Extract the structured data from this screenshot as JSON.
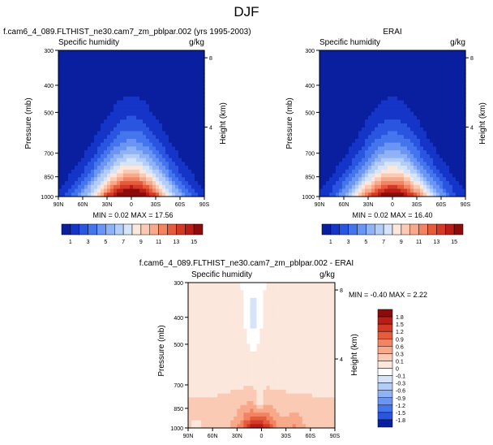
{
  "figure": {
    "title": "DJF"
  },
  "panels": [
    {
      "id": "model",
      "title": "f.cam6_4_089.FLTHIST_ne30.cam7_zm_pblpar.002 (yrs 1995-2003)",
      "left_label": "Specific humidity",
      "right_label": "g/kg",
      "stats": "MIN =  0.02  MAX =  17.56",
      "ylabel": "Pressure (mb)",
      "y2label": "Height (km)"
    },
    {
      "id": "obs",
      "title": "ERAI",
      "left_label": "Specific humidity",
      "right_label": "g/kg",
      "stats": "MIN =  0.02  MAX =  16.40",
      "ylabel": "Pressure (mb)",
      "y2label": "Height (km)"
    },
    {
      "id": "diff",
      "title": "f.cam6_4_089.FLTHIST_ne30.cam7_zm_pblpar.002 - ERAI",
      "left_label": "Specific humidity",
      "right_label": "g/kg",
      "stats": "MIN = -0.40  MAX =   2.22",
      "ylabel": "Pressure (mb)",
      "y2label": "Height (km)"
    }
  ],
  "chart_data": [
    {
      "type": "heatmap",
      "panel": "model",
      "x_ticks": [
        "90N",
        "60N",
        "30N",
        "0",
        "30S",
        "60S",
        "90S"
      ],
      "y_ticks": [
        "300",
        "400",
        "500",
        "700",
        "850",
        "1000"
      ],
      "y_tick_values": [
        300,
        400,
        500,
        700,
        850,
        1000
      ],
      "y2_ticks": [
        "8",
        "4"
      ],
      "y2_tick_values": [
        8,
        4
      ],
      "xlim": [
        90,
        -90
      ],
      "ylim": [
        1000,
        300
      ],
      "y_scale": "log",
      "fields": {
        "peak_lat": 0,
        "peak_value": 17.56,
        "min_value": 0.02
      },
      "colorbar": {
        "labels": [
          "1",
          "3",
          "5",
          "7",
          "9",
          "11",
          "13",
          "15"
        ],
        "colors": [
          "#0a1fa0",
          "#1535c8",
          "#2a55e0",
          "#4575ec",
          "#6a95f2",
          "#8fb3f6",
          "#b3cdf8",
          "#d6e4fa",
          "#fbe7dc",
          "#fbcab4",
          "#f7a98a",
          "#f28463",
          "#e65b3c",
          "#d33a26",
          "#b81d17",
          "#8c0c0c"
        ]
      }
    },
    {
      "type": "heatmap",
      "panel": "obs",
      "x_ticks": [
        "90N",
        "60N",
        "30N",
        "0",
        "30S",
        "60S",
        "90S"
      ],
      "y_ticks": [
        "300",
        "400",
        "500",
        "700",
        "850",
        "1000"
      ],
      "y_tick_values": [
        300,
        400,
        500,
        700,
        850,
        1000
      ],
      "y2_ticks": [
        "8",
        "4"
      ],
      "y2_tick_values": [
        8,
        4
      ],
      "xlim": [
        90,
        -90
      ],
      "ylim": [
        1000,
        300
      ],
      "y_scale": "log",
      "fields": {
        "peak_lat": 0,
        "peak_value": 16.4,
        "min_value": 0.02
      },
      "colorbar": {
        "labels": [
          "1",
          "3",
          "5",
          "7",
          "9",
          "11",
          "13",
          "15"
        ],
        "colors": [
          "#0a1fa0",
          "#1535c8",
          "#2a55e0",
          "#4575ec",
          "#6a95f2",
          "#8fb3f6",
          "#b3cdf8",
          "#d6e4fa",
          "#fbe7dc",
          "#fbcab4",
          "#f7a98a",
          "#f28463",
          "#e65b3c",
          "#d33a26",
          "#b81d17",
          "#8c0c0c"
        ]
      }
    },
    {
      "type": "heatmap",
      "panel": "diff",
      "x_ticks": [
        "90N",
        "60N",
        "30N",
        "0",
        "30S",
        "60S",
        "90S"
      ],
      "y_ticks": [
        "300",
        "400",
        "500",
        "700",
        "850",
        "1000"
      ],
      "y_tick_values": [
        300,
        400,
        500,
        700,
        850,
        1000
      ],
      "y2_ticks": [
        "8",
        "4"
      ],
      "y2_tick_values": [
        8,
        4
      ],
      "xlim": [
        90,
        -90
      ],
      "ylim": [
        1000,
        300
      ],
      "y_scale": "log",
      "fields": {
        "min_value": -0.4,
        "max_value": 2.22
      },
      "colorbar": {
        "labels": [
          "1.8",
          "1.5",
          "1.2",
          "0.9",
          "0.6",
          "0.3",
          "0.1",
          "0",
          "-0.1",
          "-0.3",
          "-0.6",
          "-0.9",
          "-1.2",
          "-1.5",
          "-1.8"
        ],
        "colors": [
          "#8c0c0c",
          "#b81d17",
          "#d33a26",
          "#e65b3c",
          "#f28463",
          "#f7a98a",
          "#fbcab4",
          "#fbe7dc",
          "#ffffff",
          "#d6e4fa",
          "#b3cdf8",
          "#8fb3f6",
          "#6a95f2",
          "#4575ec",
          "#2a55e0",
          "#0a1fa0"
        ]
      }
    }
  ]
}
